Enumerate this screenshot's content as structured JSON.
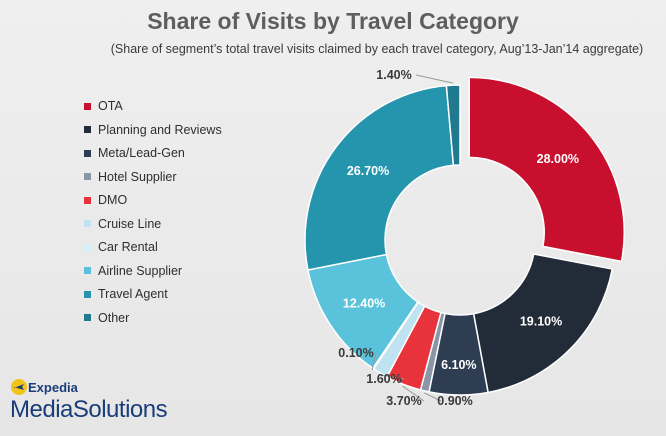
{
  "header": {
    "title": "Share of Visits by Travel Category",
    "subtitle": "(Share of segment’s total travel visits claimed by each travel category, Aug’13-Jan’14 aggregate)"
  },
  "brand": {
    "top": "Expedia",
    "main": "MediaSolutions"
  },
  "chart_data": {
    "type": "pie",
    "style": "donut",
    "title": "Share of Visits by Travel Category",
    "subtitle": "(Share of segment’s total travel visits claimed by each travel category, Aug’13-Jan’14 aggregate)",
    "legend_placement": "left",
    "slices": [
      {
        "label": "OTA",
        "value": 28.0,
        "display": "28.00%",
        "color": "#c8102e"
      },
      {
        "label": "Planning and Reviews",
        "value": 19.1,
        "display": "19.10%",
        "color": "#222b38"
      },
      {
        "label": "Meta/Lead-Gen",
        "value": 6.1,
        "display": "6.10%",
        "color": "#2e3d52"
      },
      {
        "label": "Hotel Supplier",
        "value": 0.9,
        "display": "0.90%",
        "color": "#8a96a6"
      },
      {
        "label": "DMO",
        "value": 3.7,
        "display": "3.70%",
        "color": "#e8323c"
      },
      {
        "label": "Cruise Line",
        "value": 1.6,
        "display": "1.60%",
        "color": "#bfe3f0"
      },
      {
        "label": "Car Rental",
        "value": 0.1,
        "display": "0.10%",
        "color": "#d6eef6"
      },
      {
        "label": "Airline Supplier",
        "value": 12.4,
        "display": "12.40%",
        "color": "#5bc2db"
      },
      {
        "label": "Travel Agent",
        "value": 26.7,
        "display": "26.70%",
        "color": "#2594ad"
      },
      {
        "label": "Other",
        "value": 1.4,
        "display": "1.40%",
        "color": "#1f7a90"
      }
    ]
  }
}
